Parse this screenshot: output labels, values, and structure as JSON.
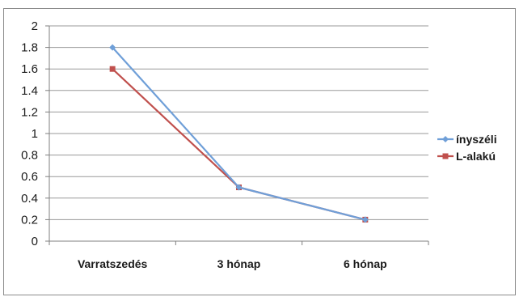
{
  "chart_data": {
    "type": "line",
    "title": "",
    "xlabel": "",
    "ylabel": "",
    "categories": [
      "Varratszedés",
      "3 hónap",
      "6 hónap"
    ],
    "ylim": [
      0,
      2
    ],
    "y_ticks": [
      "0",
      "0.2",
      "0.4",
      "0.6",
      "0.8",
      "1",
      "1.2",
      "1.4",
      "1.6",
      "1.8",
      "2"
    ],
    "grid": true,
    "legend_position": "right",
    "series": [
      {
        "name": "ínyszéli",
        "values": [
          1.8,
          0.5,
          0.2
        ],
        "color": "#6f9fd8",
        "marker": "diamond"
      },
      {
        "name": "L-alakú",
        "values": [
          1.6,
          0.5,
          0.2
        ],
        "color": "#c0504d",
        "marker": "square"
      }
    ]
  }
}
